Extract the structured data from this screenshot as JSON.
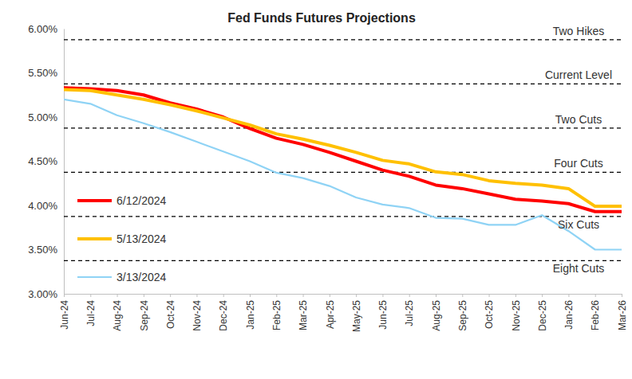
{
  "chart_data": {
    "type": "line",
    "title": "Fed Funds Futures Projections",
    "categories": [
      "Jun-24",
      "Jul-24",
      "Aug-24",
      "Sep-24",
      "Oct-24",
      "Nov-24",
      "Dec-24",
      "Jan-25",
      "Feb-25",
      "Mar-25",
      "Apr-25",
      "May-25",
      "Jun-25",
      "Jul-25",
      "Aug-25",
      "Sep-25",
      "Oct-25",
      "Nov-25",
      "Dec-25",
      "Jan-26",
      "Feb-26",
      "Mar-26"
    ],
    "series": [
      {
        "name": "6/12/2024",
        "color": "#ff0000",
        "values": [
          5.33,
          5.32,
          5.3,
          5.25,
          5.16,
          5.09,
          5.0,
          4.87,
          4.76,
          4.69,
          4.6,
          4.5,
          4.4,
          4.33,
          4.23,
          4.19,
          4.13,
          4.07,
          4.05,
          4.02,
          3.93,
          3.93
        ]
      },
      {
        "name": "5/13/2024",
        "color": "#ffc000",
        "values": [
          5.31,
          5.3,
          5.25,
          5.2,
          5.14,
          5.07,
          4.99,
          4.91,
          4.81,
          4.75,
          4.68,
          4.6,
          4.51,
          4.47,
          4.38,
          4.35,
          4.28,
          4.25,
          4.23,
          4.19,
          3.99,
          3.99
        ]
      },
      {
        "name": "3/13/2024",
        "color": "#8fd3f5",
        "values": [
          5.2,
          5.15,
          5.02,
          4.93,
          4.83,
          4.72,
          4.61,
          4.5,
          4.37,
          4.31,
          4.22,
          4.09,
          4.01,
          3.97,
          3.86,
          3.85,
          3.78,
          3.78,
          3.89,
          3.71,
          3.5,
          3.5
        ]
      }
    ],
    "reference_lines": [
      {
        "label": "Two Hikes",
        "value": 5.875
      },
      {
        "label": "Current Level",
        "value": 5.375
      },
      {
        "label": "Two Cuts",
        "value": 4.875
      },
      {
        "label": "Four Cuts",
        "value": 4.375
      },
      {
        "label": "Six Cuts",
        "value": 3.875
      },
      {
        "label": "Eight Cuts",
        "value": 3.375
      }
    ],
    "ylim": [
      3,
      6
    ],
    "yticks": [
      {
        "value": 3,
        "label": "3.00%"
      },
      {
        "value": 3.5,
        "label": "3.50%"
      },
      {
        "value": 4,
        "label": "4.00%"
      },
      {
        "value": 4.5,
        "label": "4.50%"
      },
      {
        "value": 5,
        "label": "5.00%"
      },
      {
        "value": 5.5,
        "label": "5.50%"
      },
      {
        "value": 6,
        "label": "6.00%"
      }
    ],
    "grid": false,
    "legend": "left"
  }
}
